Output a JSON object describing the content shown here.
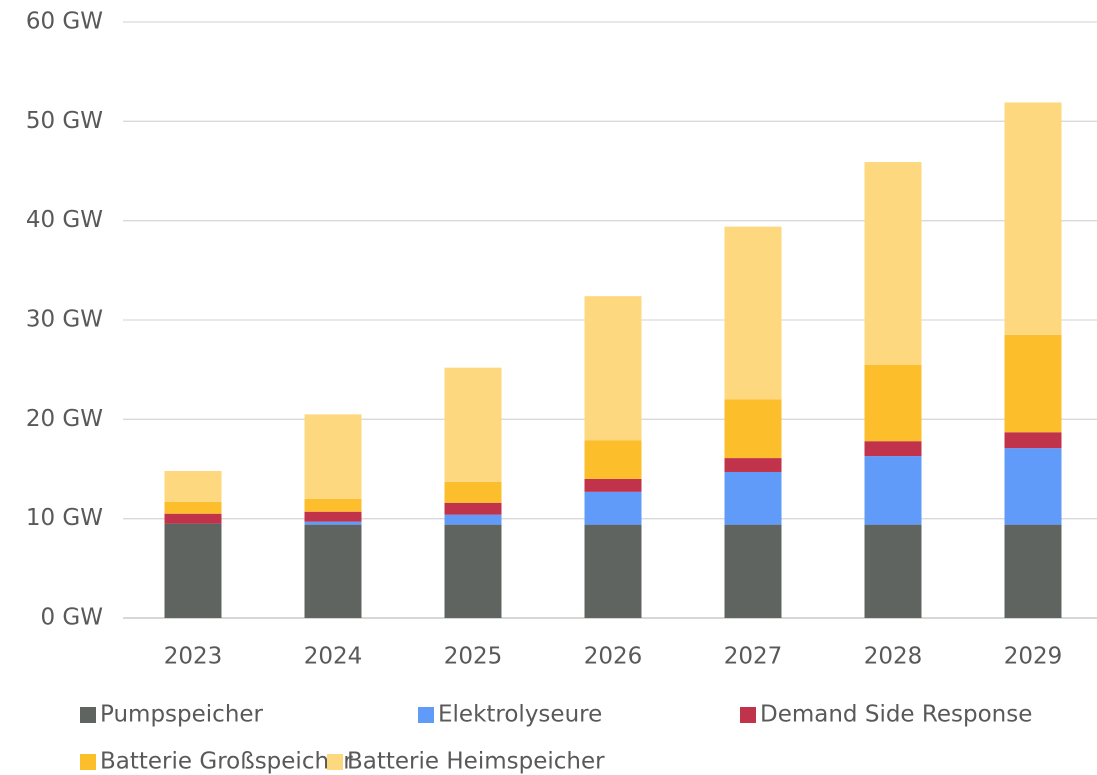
{
  "chart_data": {
    "type": "stacked_bar",
    "categories": [
      "2023",
      "2024",
      "2025",
      "2026",
      "2027",
      "2028",
      "2029"
    ],
    "series": [
      {
        "name": "Pumpspeicher",
        "color": "#5f6461",
        "values": [
          9.5,
          9.4,
          9.4,
          9.4,
          9.4,
          9.4,
          9.4
        ]
      },
      {
        "name": "Elektrolyseure",
        "color": "#619bfa",
        "values": [
          0,
          0.3,
          1.0,
          3.3,
          5.3,
          6.9,
          7.7
        ]
      },
      {
        "name": "Demand Side Response",
        "color": "#c0334a",
        "values": [
          1.0,
          1.0,
          1.2,
          1.3,
          1.4,
          1.5,
          1.6
        ]
      },
      {
        "name": "Batterie Großspeicher",
        "color": "#fdbe2b",
        "values": [
          1.2,
          1.3,
          2.1,
          3.9,
          5.9,
          7.7,
          9.8
        ]
      },
      {
        "name": "Batterie Heimspeicher",
        "color": "#fed87f",
        "values": [
          3.1,
          8.5,
          11.5,
          14.5,
          17.4,
          20.4,
          23.4
        ]
      }
    ],
    "ylim": [
      0,
      60
    ],
    "yticks": [
      {
        "value": 0,
        "label": "0 GW"
      },
      {
        "value": 10,
        "label": "10 GW"
      },
      {
        "value": 20,
        "label": "20 GW"
      },
      {
        "value": 30,
        "label": "30 GW"
      },
      {
        "value": 40,
        "label": "40 GW"
      },
      {
        "value": 50,
        "label": "50 GW"
      },
      {
        "value": 60,
        "label": "60 GW"
      }
    ],
    "grid": true,
    "legend": "bottom"
  }
}
